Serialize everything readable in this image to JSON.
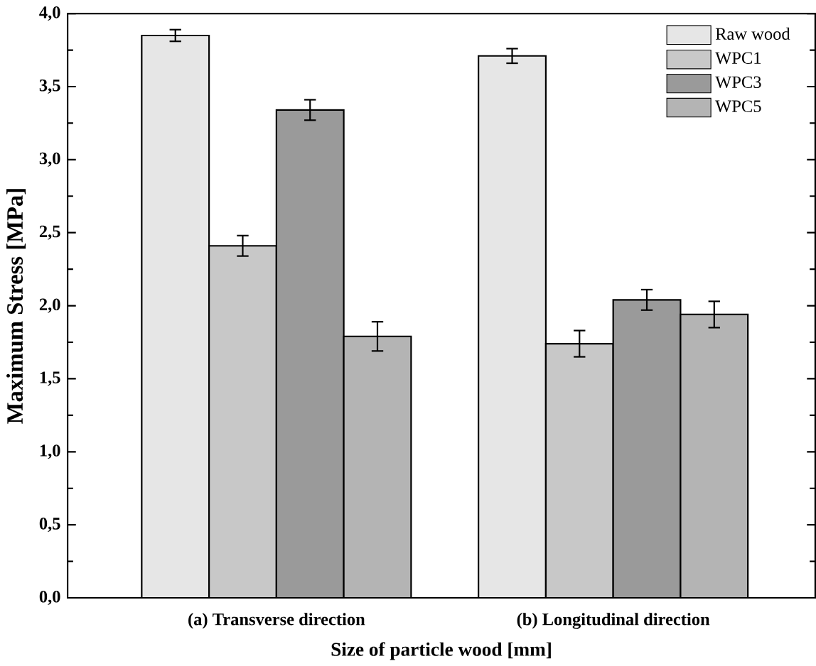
{
  "chart_data": {
    "type": "bar",
    "xlabel": "Size of particle wood [mm]",
    "ylabel": "Maximum Stress [MPa]",
    "categories": [
      "(a) Transverse direction",
      "(b) Longitudinal direction"
    ],
    "series": [
      {
        "name": "Raw wood",
        "color": "#e6e6e6",
        "values": [
          3.85,
          3.71
        ],
        "errors": [
          0.04,
          0.05
        ]
      },
      {
        "name": "WPC1",
        "color": "#c8c8c8",
        "values": [
          2.41,
          1.74
        ],
        "errors": [
          0.07,
          0.09
        ]
      },
      {
        "name": "WPC3",
        "color": "#9a9a9a",
        "values": [
          3.34,
          2.04
        ],
        "errors": [
          0.07,
          0.07
        ]
      },
      {
        "name": "WPC5",
        "color": "#b4b4b4",
        "values": [
          1.79,
          1.94
        ],
        "errors": [
          0.1,
          0.09
        ]
      }
    ],
    "ylim": [
      0,
      4.0
    ],
    "yticks": [
      {
        "value": 0,
        "label": "0,0"
      },
      {
        "value": 0.5,
        "label": "0,5"
      },
      {
        "value": 1.0,
        "label": "1,0"
      },
      {
        "value": 1.5,
        "label": "1,5"
      },
      {
        "value": 2.0,
        "label": "2,0"
      },
      {
        "value": 2.5,
        "label": "2,5"
      },
      {
        "value": 3.0,
        "label": "3,0"
      },
      {
        "value": 3.5,
        "label": "3,5"
      },
      {
        "value": 4.0,
        "label": "4,0"
      }
    ],
    "legend": "top right",
    "grid": false
  }
}
